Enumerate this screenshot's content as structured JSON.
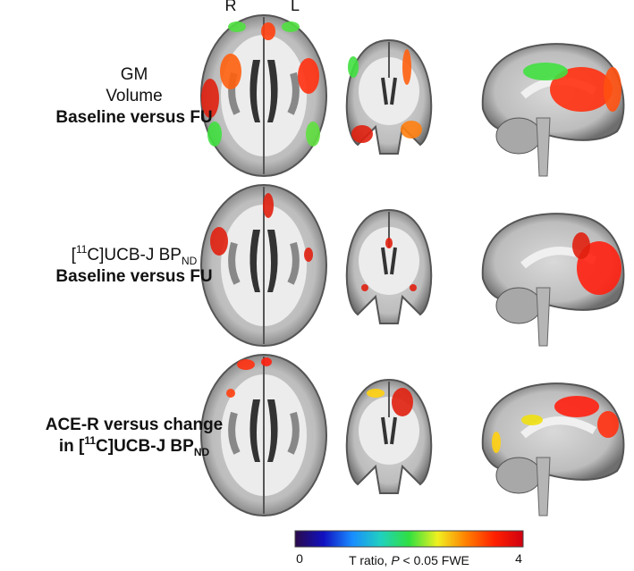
{
  "header": {
    "left": "R",
    "right": "L"
  },
  "rows": [
    {
      "label": [
        [
          {
            "text": "GM"
          }
        ],
        [
          {
            "text": "Volume"
          }
        ],
        [
          {
            "text": "Baseline versus FU",
            "bold": true
          }
        ]
      ]
    },
    {
      "label": [
        [
          {
            "text": "["
          },
          {
            "text": "11",
            "script": "sup"
          },
          {
            "text": "C]UCB-J BP"
          },
          {
            "text": "ND",
            "script": "sub"
          }
        ],
        [
          {
            "text": "Baseline versus FU",
            "bold": true
          }
        ]
      ]
    },
    {
      "label": [
        [
          {
            "text": "ACE-R versus change",
            "bold": true
          }
        ],
        [
          {
            "text": "in [",
            "bold": true
          },
          {
            "text": "11",
            "script": "sup",
            "bold": true
          },
          {
            "text": "C]UCB-J BP",
            "bold": true
          },
          {
            "text": "ND",
            "script": "sub",
            "bold": true
          }
        ]
      ]
    }
  ],
  "colorbar": {
    "min": 0,
    "max": 4,
    "colors": [
      "#2a0a4a",
      "#1010c0",
      "#1a8cff",
      "#20d0c0",
      "#30e040",
      "#f0f020",
      "#ff8000",
      "#ff2000",
      "#d00010"
    ],
    "caption": [
      {
        "text": "T ratio, "
      },
      {
        "text": "P",
        "italic": true
      },
      {
        "text": " < 0.05 FWE"
      }
    ]
  }
}
